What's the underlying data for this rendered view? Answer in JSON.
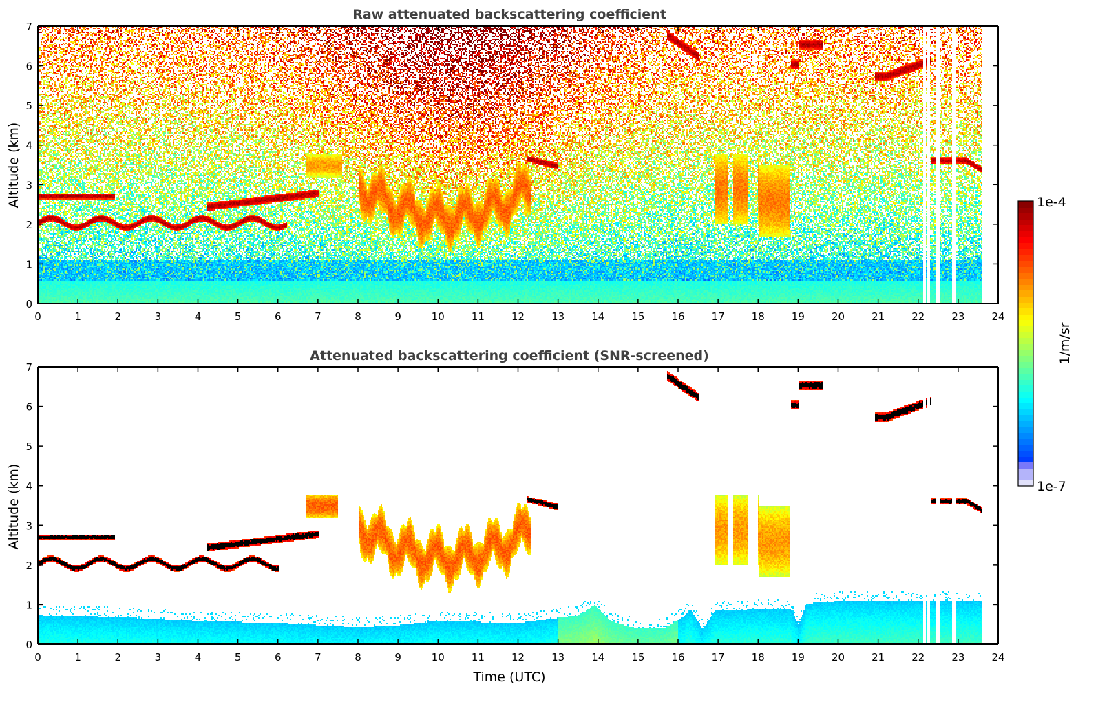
{
  "figure": {
    "colorbar": {
      "label": "1/m/sr",
      "tick_max": "1e-4",
      "tick_min": "1e-7",
      "vmin_log10": -7,
      "vmax_log10": -4,
      "colormap": "jet"
    }
  },
  "chart_data": [
    {
      "type": "heatmap",
      "title": "Raw attenuated backscattering coefficient",
      "xlabel": "",
      "ylabel": "Altitude (km)",
      "xlim": [
        0,
        24
      ],
      "ylim": [
        0,
        7
      ],
      "xticks": [
        "0",
        "1",
        "2",
        "3",
        "4",
        "5",
        "6",
        "7",
        "8",
        "9",
        "10",
        "11",
        "12",
        "13",
        "14",
        "15",
        "16",
        "17",
        "18",
        "19",
        "20",
        "21",
        "22",
        "23",
        "24"
      ],
      "yticks": [
        "0",
        "1",
        "2",
        "3",
        "4",
        "5",
        "6",
        "7"
      ],
      "data_end_hour": 23.6,
      "missing_profiles_hours": [
        22.15,
        22.25,
        22.45,
        22.5,
        22.85,
        22.9
      ],
      "noise": true,
      "features": [
        {
          "name": "boundary-layer",
          "t0": 0,
          "t1": 23.6,
          "z_top": 0.6,
          "log10": -6.3
        },
        {
          "name": "lower-cloud-layer-a",
          "t0": 0,
          "t1": 1.9,
          "z": 2.75,
          "log10": -4.05
        },
        {
          "name": "lower-cloud-layer-b",
          "t0": 0,
          "t1": 6.2,
          "z": 2.1,
          "log10": -4.05
        },
        {
          "name": "mid-cloud-layer",
          "t0": 4.2,
          "t1": 7.0,
          "z": 2.6,
          "log10": -4.05
        },
        {
          "name": "aerosol-plume-7h",
          "t0": 6.7,
          "t1": 7.6,
          "z": 3.5,
          "log10": -4.8
        },
        {
          "name": "precip-cloud-9-12h",
          "t0": 8.0,
          "t1": 12.3,
          "z": 2.6,
          "log10": -4.6
        },
        {
          "name": "cloud-12.5h",
          "t0": 12.2,
          "t1": 13.0,
          "z": 3.6,
          "log10": -4.05
        },
        {
          "name": "cirrus-16h",
          "t0": 15.7,
          "t1": 16.5,
          "z": 6.5,
          "log10": -4.05
        },
        {
          "name": "virga-17-19h",
          "t0": 16.9,
          "t1": 18.8,
          "z": 2.7,
          "log10": -4.7
        },
        {
          "name": "cirrus-19h",
          "t0": 18.8,
          "t1": 19.6,
          "z": 6.5,
          "log10": -4.05
        },
        {
          "name": "cirrus-21-22h",
          "t0": 20.9,
          "t1": 22.3,
          "z": 5.9,
          "log10": -4.05
        },
        {
          "name": "cloud-22-23.6h",
          "t0": 22.3,
          "t1": 23.6,
          "z": 3.55,
          "log10": -4.05
        }
      ]
    },
    {
      "type": "heatmap",
      "title": "Attenuated backscattering coefficient (SNR-screened)",
      "xlabel": "Time (UTC)",
      "ylabel": "Altitude (km)",
      "xlim": [
        0,
        24
      ],
      "ylim": [
        0,
        7
      ],
      "xticks": [
        "0",
        "1",
        "2",
        "3",
        "4",
        "5",
        "6",
        "7",
        "8",
        "9",
        "10",
        "11",
        "12",
        "13",
        "14",
        "15",
        "16",
        "17",
        "18",
        "19",
        "20",
        "21",
        "22",
        "23",
        "24"
      ],
      "yticks": [
        "0",
        "1",
        "2",
        "3",
        "4",
        "5",
        "6",
        "7"
      ],
      "data_end_hour": 23.6,
      "missing_profiles_hours": [
        22.15,
        22.25,
        22.45,
        22.5,
        22.85,
        22.9
      ],
      "noise": false,
      "saturated_color": "#000000",
      "boundary_layer_top_km": [
        [
          0,
          0.75
        ],
        [
          2,
          0.7
        ],
        [
          4,
          0.6
        ],
        [
          6,
          0.55
        ],
        [
          8,
          0.45
        ],
        [
          9,
          0.5
        ],
        [
          10,
          0.6
        ],
        [
          12,
          0.55
        ],
        [
          13.5,
          0.75
        ],
        [
          13.9,
          1.0
        ],
        [
          14.3,
          0.6
        ],
        [
          15,
          0.4
        ],
        [
          15.6,
          0.4
        ],
        [
          16.1,
          0.7
        ],
        [
          16.3,
          0.9
        ],
        [
          16.6,
          0.4
        ],
        [
          16.9,
          0.85
        ],
        [
          18.0,
          0.9
        ],
        [
          18.8,
          0.9
        ],
        [
          19.0,
          0.5
        ],
        [
          19.2,
          1.05
        ],
        [
          20,
          1.1
        ],
        [
          23.6,
          1.1
        ]
      ],
      "features": [
        {
          "name": "lower-cloud-layer-a",
          "t0": 0,
          "t1": 1.9,
          "z": 2.75,
          "log10": -4.0
        },
        {
          "name": "lower-cloud-layer-b",
          "t0": 0,
          "t1": 6.0,
          "z": 2.1,
          "log10": -4.0
        },
        {
          "name": "mid-cloud-layer",
          "t0": 4.2,
          "t1": 7.0,
          "z": 2.6,
          "log10": -4.0
        },
        {
          "name": "aerosol-plume-7h",
          "t0": 6.7,
          "t1": 7.5,
          "z": 3.5,
          "log10": -4.6
        },
        {
          "name": "precip-cloud-9-12h",
          "t0": 8.0,
          "t1": 12.3,
          "z": 2.6,
          "log10": -4.6
        },
        {
          "name": "cloud-12.5h",
          "t0": 12.2,
          "t1": 13.0,
          "z": 3.6,
          "log10": -4.0
        },
        {
          "name": "cirrus-16h",
          "t0": 15.7,
          "t1": 16.5,
          "z": 6.5,
          "log10": -4.0
        },
        {
          "name": "virga-17-19h",
          "t0": 16.9,
          "t1": 18.8,
          "z": 2.7,
          "log10": -4.8
        },
        {
          "name": "cirrus-19h",
          "t0": 18.8,
          "t1": 19.6,
          "z": 6.5,
          "log10": -4.0
        },
        {
          "name": "cirrus-21-22h",
          "t0": 20.9,
          "t1": 22.3,
          "z": 5.9,
          "log10": -4.0
        },
        {
          "name": "cloud-22-23.6h",
          "t0": 22.3,
          "t1": 23.6,
          "z": 3.55,
          "log10": -4.0
        }
      ]
    }
  ]
}
